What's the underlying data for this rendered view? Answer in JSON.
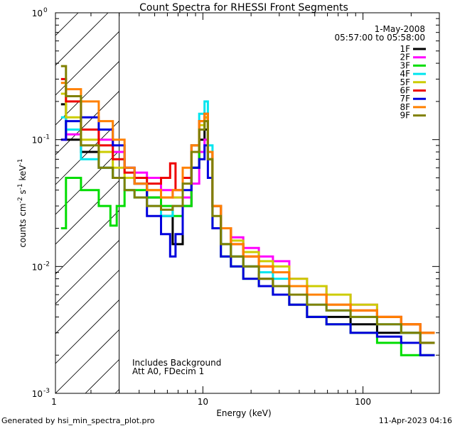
{
  "chart_data": {
    "type": "line",
    "title": "Count Spectra for RHESSI Front Segments",
    "xlabel": "Energy (keV)",
    "ylabel": "counts cm-2 s-1 keV-1",
    "xscale": "log",
    "yscale": "log",
    "xlim": [
      1.2,
      300
    ],
    "ylim": [
      0.001,
      1.0
    ],
    "x_tick_labels": [
      {
        "value": 1,
        "label": "1"
      },
      {
        "value": 10,
        "label": "10"
      },
      {
        "value": 100,
        "label": "100"
      }
    ],
    "y_tick_labels": [
      {
        "value": 1.0,
        "base": "10",
        "exp": "0"
      },
      {
        "value": 0.1,
        "base": "10",
        "exp": "-1"
      },
      {
        "value": 0.01,
        "base": "10",
        "exp": "-2"
      },
      {
        "value": 0.001,
        "base": "10",
        "exp": "-3"
      }
    ],
    "shaded_region": {
      "from": 1.2,
      "to": 3.0,
      "style": "hatched"
    },
    "vertical_line": 3.0,
    "legend_position": "top-right",
    "date": "1-May-2008",
    "time_range": "05:57:00 to 05:58:00",
    "annotations": [
      "Includes Background",
      "Att A0, FDecim 1"
    ],
    "series": [
      {
        "name": "1F",
        "color": "#000000",
        "points": [
          [
            1.3,
            0.19
          ],
          [
            1.5,
            0.1
          ],
          [
            2.0,
            0.08
          ],
          [
            2.5,
            0.06
          ],
          [
            3.0,
            0.05
          ],
          [
            3.5,
            0.05
          ],
          [
            4.0,
            0.045
          ],
          [
            5.0,
            0.035
          ],
          [
            6.0,
            0.025
          ],
          [
            7.0,
            0.015
          ],
          [
            8.0,
            0.03
          ],
          [
            9.0,
            0.06
          ],
          [
            10.0,
            0.1
          ],
          [
            10.5,
            0.12
          ],
          [
            11.0,
            0.08
          ],
          [
            12.0,
            0.03
          ],
          [
            14.0,
            0.015
          ],
          [
            16.0,
            0.012
          ],
          [
            20.0,
            0.01
          ],
          [
            25.0,
            0.008
          ],
          [
            30.0,
            0.007
          ],
          [
            40.0,
            0.005
          ],
          [
            50.0,
            0.004
          ],
          [
            70.0,
            0.004
          ],
          [
            100.0,
            0.0035
          ],
          [
            150.0,
            0.003
          ],
          [
            200.0,
            0.003
          ],
          [
            260.0,
            0.0025
          ]
        ]
      },
      {
        "name": "2F",
        "color": "#ff00ff",
        "points": [
          [
            1.3,
            0.1
          ],
          [
            1.5,
            0.11
          ],
          [
            2.0,
            0.12
          ],
          [
            2.5,
            0.1
          ],
          [
            3.0,
            0.08
          ],
          [
            3.5,
            0.06
          ],
          [
            4.0,
            0.055
          ],
          [
            5.0,
            0.05
          ],
          [
            6.0,
            0.04
          ],
          [
            7.0,
            0.035
          ],
          [
            8.0,
            0.035
          ],
          [
            9.0,
            0.045
          ],
          [
            10.0,
            0.08
          ],
          [
            10.5,
            0.1
          ],
          [
            11.0,
            0.07
          ],
          [
            12.0,
            0.03
          ],
          [
            14.0,
            0.02
          ],
          [
            16.0,
            0.017
          ],
          [
            20.0,
            0.014
          ],
          [
            25.0,
            0.012
          ],
          [
            30.0,
            0.011
          ],
          [
            40.0,
            0.008
          ],
          [
            50.0,
            0.007
          ],
          [
            70.0,
            0.006
          ],
          [
            100.0,
            0.005
          ],
          [
            150.0,
            0.004
          ],
          [
            200.0,
            0.0035
          ],
          [
            260.0,
            0.003
          ]
        ]
      },
      {
        "name": "3F",
        "color": "#00dd00",
        "points": [
          [
            1.3,
            0.02
          ],
          [
            1.5,
            0.05
          ],
          [
            2.0,
            0.04
          ],
          [
            2.5,
            0.03
          ],
          [
            2.8,
            0.021
          ],
          [
            3.0,
            0.03
          ],
          [
            3.5,
            0.04
          ],
          [
            4.0,
            0.04
          ],
          [
            5.0,
            0.035
          ],
          [
            6.0,
            0.03
          ],
          [
            7.0,
            0.025
          ],
          [
            8.0,
            0.03
          ],
          [
            9.0,
            0.06
          ],
          [
            10.0,
            0.12
          ],
          [
            10.5,
            0.15
          ],
          [
            11.0,
            0.07
          ],
          [
            12.0,
            0.02
          ],
          [
            14.0,
            0.012
          ],
          [
            16.0,
            0.01
          ],
          [
            20.0,
            0.008
          ],
          [
            25.0,
            0.007
          ],
          [
            30.0,
            0.006
          ],
          [
            40.0,
            0.005
          ],
          [
            50.0,
            0.004
          ],
          [
            70.0,
            0.0035
          ],
          [
            100.0,
            0.003
          ],
          [
            150.0,
            0.0025
          ],
          [
            200.0,
            0.002
          ],
          [
            260.0,
            0.002
          ]
        ]
      },
      {
        "name": "4F",
        "color": "#00e5ee",
        "points": [
          [
            1.3,
            0.15
          ],
          [
            1.5,
            0.12
          ],
          [
            2.0,
            0.07
          ],
          [
            2.5,
            0.06
          ],
          [
            3.0,
            0.05
          ],
          [
            3.5,
            0.04
          ],
          [
            4.0,
            0.035
          ],
          [
            5.0,
            0.03
          ],
          [
            6.0,
            0.025
          ],
          [
            7.0,
            0.03
          ],
          [
            8.0,
            0.05
          ],
          [
            9.0,
            0.09
          ],
          [
            10.0,
            0.16
          ],
          [
            10.5,
            0.2
          ],
          [
            11.0,
            0.09
          ],
          [
            12.0,
            0.03
          ],
          [
            14.0,
            0.015
          ],
          [
            16.0,
            0.012
          ],
          [
            20.0,
            0.01
          ],
          [
            25.0,
            0.009
          ],
          [
            30.0,
            0.008
          ],
          [
            40.0,
            0.006
          ],
          [
            50.0,
            0.005
          ],
          [
            70.0,
            0.0045
          ],
          [
            100.0,
            0.004
          ],
          [
            150.0,
            0.0035
          ],
          [
            200.0,
            0.003
          ],
          [
            260.0,
            0.003
          ]
        ]
      },
      {
        "name": "5F",
        "color": "#cccc00",
        "points": [
          [
            1.3,
            0.23
          ],
          [
            1.5,
            0.15
          ],
          [
            2.0,
            0.1
          ],
          [
            2.5,
            0.08
          ],
          [
            3.0,
            0.06
          ],
          [
            3.5,
            0.05
          ],
          [
            4.0,
            0.045
          ],
          [
            5.0,
            0.04
          ],
          [
            6.0,
            0.035
          ],
          [
            7.0,
            0.035
          ],
          [
            8.0,
            0.05
          ],
          [
            9.0,
            0.08
          ],
          [
            10.0,
            0.13
          ],
          [
            10.5,
            0.15
          ],
          [
            11.0,
            0.08
          ],
          [
            12.0,
            0.03
          ],
          [
            14.0,
            0.02
          ],
          [
            16.0,
            0.016
          ],
          [
            20.0,
            0.013
          ],
          [
            25.0,
            0.011
          ],
          [
            30.0,
            0.01
          ],
          [
            40.0,
            0.008
          ],
          [
            50.0,
            0.007
          ],
          [
            70.0,
            0.006
          ],
          [
            100.0,
            0.005
          ],
          [
            150.0,
            0.004
          ],
          [
            200.0,
            0.0035
          ],
          [
            260.0,
            0.003
          ]
        ]
      },
      {
        "name": "6F",
        "color": "#ee0000",
        "points": [
          [
            1.3,
            0.3
          ],
          [
            1.5,
            0.2
          ],
          [
            2.0,
            0.12
          ],
          [
            2.5,
            0.09
          ],
          [
            3.0,
            0.07
          ],
          [
            3.5,
            0.055
          ],
          [
            4.0,
            0.05
          ],
          [
            5.0,
            0.045
          ],
          [
            6.0,
            0.05
          ],
          [
            6.5,
            0.065
          ],
          [
            7.0,
            0.04
          ],
          [
            8.0,
            0.05
          ],
          [
            9.0,
            0.09
          ],
          [
            10.0,
            0.14
          ],
          [
            10.5,
            0.16
          ],
          [
            11.0,
            0.08
          ],
          [
            12.0,
            0.03
          ],
          [
            14.0,
            0.02
          ],
          [
            16.0,
            0.015
          ],
          [
            20.0,
            0.012
          ],
          [
            25.0,
            0.01
          ],
          [
            30.0,
            0.009
          ],
          [
            40.0,
            0.007
          ],
          [
            50.0,
            0.006
          ],
          [
            70.0,
            0.005
          ],
          [
            100.0,
            0.0045
          ],
          [
            150.0,
            0.004
          ],
          [
            200.0,
            0.0035
          ],
          [
            260.0,
            0.003
          ]
        ]
      },
      {
        "name": "7F",
        "color": "#0000dd",
        "points": [
          [
            1.3,
            0.1
          ],
          [
            1.5,
            0.14
          ],
          [
            2.0,
            0.15
          ],
          [
            2.5,
            0.12
          ],
          [
            3.0,
            0.09
          ],
          [
            3.5,
            0.06
          ],
          [
            4.0,
            0.045
          ],
          [
            5.0,
            0.025
          ],
          [
            6.0,
            0.018
          ],
          [
            6.5,
            0.012
          ],
          [
            7.0,
            0.018
          ],
          [
            8.0,
            0.04
          ],
          [
            9.0,
            0.06
          ],
          [
            10.0,
            0.07
          ],
          [
            10.5,
            0.09
          ],
          [
            11.0,
            0.05
          ],
          [
            12.0,
            0.02
          ],
          [
            14.0,
            0.012
          ],
          [
            16.0,
            0.01
          ],
          [
            20.0,
            0.008
          ],
          [
            25.0,
            0.007
          ],
          [
            30.0,
            0.006
          ],
          [
            40.0,
            0.005
          ],
          [
            50.0,
            0.004
          ],
          [
            70.0,
            0.0035
          ],
          [
            100.0,
            0.003
          ],
          [
            150.0,
            0.0028
          ],
          [
            200.0,
            0.0025
          ],
          [
            260.0,
            0.002
          ]
        ]
      },
      {
        "name": "8F",
        "color": "#ff8000",
        "points": [
          [
            1.3,
            0.28
          ],
          [
            1.5,
            0.25
          ],
          [
            2.0,
            0.2
          ],
          [
            2.5,
            0.14
          ],
          [
            3.0,
            0.1
          ],
          [
            3.5,
            0.06
          ],
          [
            4.0,
            0.045
          ],
          [
            5.0,
            0.04
          ],
          [
            6.0,
            0.035
          ],
          [
            7.0,
            0.04
          ],
          [
            8.0,
            0.06
          ],
          [
            9.0,
            0.09
          ],
          [
            10.0,
            0.14
          ],
          [
            10.5,
            0.16
          ],
          [
            11.0,
            0.08
          ],
          [
            12.0,
            0.03
          ],
          [
            14.0,
            0.02
          ],
          [
            16.0,
            0.015
          ],
          [
            20.0,
            0.012
          ],
          [
            25.0,
            0.01
          ],
          [
            30.0,
            0.009
          ],
          [
            40.0,
            0.007
          ],
          [
            50.0,
            0.006
          ],
          [
            70.0,
            0.005
          ],
          [
            100.0,
            0.0045
          ],
          [
            150.0,
            0.004
          ],
          [
            200.0,
            0.0035
          ],
          [
            260.0,
            0.003
          ]
        ]
      },
      {
        "name": "9F",
        "color": "#808000",
        "points": [
          [
            1.3,
            0.38
          ],
          [
            1.5,
            0.22
          ],
          [
            2.0,
            0.09
          ],
          [
            2.5,
            0.06
          ],
          [
            3.0,
            0.05
          ],
          [
            3.5,
            0.04
          ],
          [
            4.0,
            0.035
          ],
          [
            5.0,
            0.03
          ],
          [
            6.0,
            0.028
          ],
          [
            7.0,
            0.03
          ],
          [
            8.0,
            0.045
          ],
          [
            9.0,
            0.08
          ],
          [
            10.0,
            0.12
          ],
          [
            10.5,
            0.14
          ],
          [
            11.0,
            0.07
          ],
          [
            12.0,
            0.025
          ],
          [
            14.0,
            0.015
          ],
          [
            16.0,
            0.012
          ],
          [
            20.0,
            0.01
          ],
          [
            25.0,
            0.008
          ],
          [
            30.0,
            0.007
          ],
          [
            40.0,
            0.006
          ],
          [
            50.0,
            0.005
          ],
          [
            70.0,
            0.0045
          ],
          [
            100.0,
            0.004
          ],
          [
            150.0,
            0.0035
          ],
          [
            200.0,
            0.003
          ],
          [
            260.0,
            0.0025
          ]
        ]
      }
    ]
  },
  "footer": {
    "left": "Generated by hsi_min_spectra_plot.pro",
    "right": "11-Apr-2023 04:16"
  }
}
